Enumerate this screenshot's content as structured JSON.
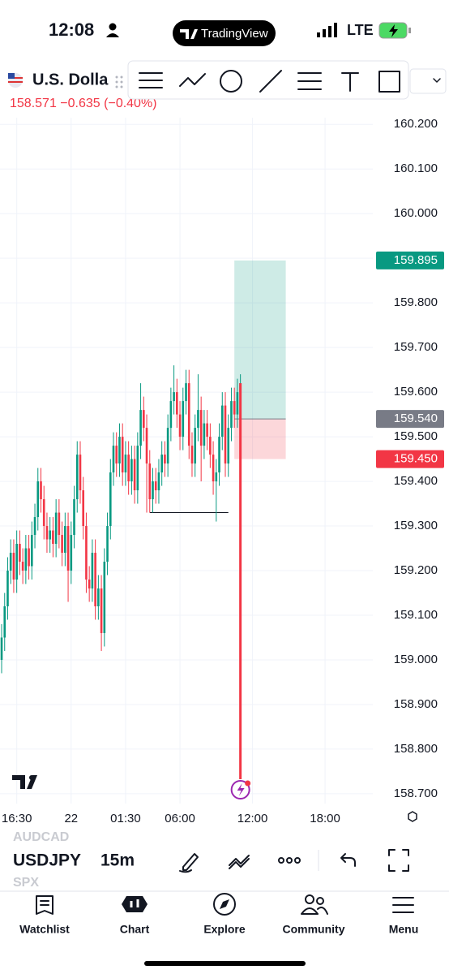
{
  "status_bar": {
    "time": "12:08",
    "app": "TradingView",
    "network": "LTE"
  },
  "symbol": {
    "name": "U.S. Dolla",
    "price": "158.571",
    "change": "−0.635",
    "change_pct": "(−0.40%)"
  },
  "chart_data": {
    "type": "candlestick",
    "up_color": "#089981",
    "down_color": "#f23645",
    "candles": [
      [
        159.0,
        159.08,
        158.97,
        159.05
      ],
      [
        159.05,
        159.15,
        159.02,
        159.12
      ],
      [
        159.12,
        159.23,
        159.09,
        159.2
      ],
      [
        159.2,
        159.27,
        159.17,
        159.24
      ],
      [
        159.24,
        159.27,
        159.15,
        159.18
      ],
      [
        159.18,
        159.29,
        159.15,
        159.26
      ],
      [
        159.26,
        159.29,
        159.19,
        159.22
      ],
      [
        159.22,
        159.25,
        159.17,
        159.2
      ],
      [
        159.2,
        159.28,
        159.17,
        159.25
      ],
      [
        159.25,
        159.28,
        159.18,
        159.21
      ],
      [
        159.21,
        159.31,
        159.18,
        159.28
      ],
      [
        159.28,
        159.35,
        159.25,
        159.32
      ],
      [
        159.32,
        159.43,
        159.29,
        159.4
      ],
      [
        159.4,
        159.43,
        159.33,
        159.36
      ],
      [
        159.36,
        159.39,
        159.27,
        159.3
      ],
      [
        159.3,
        159.33,
        159.24,
        159.27
      ],
      [
        159.27,
        159.32,
        159.24,
        159.29
      ],
      [
        159.29,
        159.32,
        159.23,
        159.26
      ],
      [
        159.26,
        159.36,
        159.23,
        159.33
      ],
      [
        159.33,
        159.36,
        159.25,
        159.28
      ],
      [
        159.28,
        159.31,
        159.21,
        159.24
      ],
      [
        159.24,
        159.33,
        159.21,
        159.3
      ],
      [
        159.3,
        159.33,
        159.13,
        159.2
      ],
      [
        159.2,
        159.31,
        159.17,
        159.28
      ],
      [
        159.28,
        159.39,
        159.25,
        159.36
      ],
      [
        159.36,
        159.49,
        159.33,
        159.46
      ],
      [
        159.46,
        159.49,
        159.35,
        159.38
      ],
      [
        159.38,
        159.41,
        159.27,
        159.3
      ],
      [
        159.3,
        159.33,
        159.15,
        159.18
      ],
      [
        159.18,
        159.21,
        159.13,
        159.16
      ],
      [
        159.16,
        159.27,
        159.13,
        159.24
      ],
      [
        159.24,
        159.27,
        159.09,
        159.12
      ],
      [
        159.12,
        159.19,
        159.09,
        159.16
      ],
      [
        159.16,
        159.19,
        159.02,
        159.06
      ],
      [
        159.06,
        159.25,
        159.03,
        159.22
      ],
      [
        159.22,
        159.33,
        159.19,
        159.3
      ],
      [
        159.3,
        159.45,
        159.27,
        159.42
      ],
      [
        159.42,
        159.51,
        159.39,
        159.48
      ],
      [
        159.48,
        159.51,
        159.41,
        159.44
      ],
      [
        159.44,
        159.53,
        159.41,
        159.5
      ],
      [
        159.5,
        159.53,
        159.39,
        159.42
      ],
      [
        159.42,
        159.49,
        159.39,
        159.46
      ],
      [
        159.46,
        159.49,
        159.37,
        159.4
      ],
      [
        159.4,
        159.48,
        159.37,
        159.45
      ],
      [
        159.45,
        159.48,
        159.35,
        159.38
      ],
      [
        159.38,
        159.51,
        159.35,
        159.48
      ],
      [
        159.48,
        159.62,
        159.45,
        159.56
      ],
      [
        159.56,
        159.59,
        159.49,
        159.52
      ],
      [
        159.52,
        159.55,
        159.33,
        159.44
      ],
      [
        159.44,
        159.47,
        159.33,
        159.36
      ],
      [
        159.36,
        159.43,
        159.33,
        159.4
      ],
      [
        159.4,
        159.43,
        159.35,
        159.38
      ],
      [
        159.38,
        159.45,
        159.35,
        159.42
      ],
      [
        159.42,
        159.49,
        159.39,
        159.46
      ],
      [
        159.46,
        159.49,
        159.41,
        159.44
      ],
      [
        159.44,
        159.55,
        159.41,
        159.52
      ],
      [
        159.52,
        159.61,
        159.49,
        159.58
      ],
      [
        159.58,
        159.66,
        159.55,
        159.6
      ],
      [
        159.6,
        159.63,
        159.52,
        159.55
      ],
      [
        159.55,
        159.58,
        159.47,
        159.5
      ],
      [
        159.5,
        159.61,
        159.47,
        159.58
      ],
      [
        159.58,
        159.65,
        159.55,
        159.62
      ],
      [
        159.62,
        159.65,
        159.45,
        159.48
      ],
      [
        159.48,
        159.51,
        159.41,
        159.44
      ],
      [
        159.44,
        159.55,
        159.41,
        159.52
      ],
      [
        159.52,
        159.64,
        159.49,
        159.56
      ],
      [
        159.56,
        159.59,
        159.4,
        159.48
      ],
      [
        159.48,
        159.56,
        159.45,
        159.53
      ],
      [
        159.53,
        159.56,
        159.47,
        159.5
      ],
      [
        159.5,
        159.53,
        159.43,
        159.46
      ],
      [
        159.46,
        159.49,
        159.37,
        159.4
      ],
      [
        159.4,
        159.45,
        159.31,
        159.42
      ],
      [
        159.42,
        159.53,
        159.39,
        159.5
      ],
      [
        159.5,
        159.6,
        159.47,
        159.57
      ],
      [
        159.57,
        159.6,
        159.41,
        159.44
      ],
      [
        159.44,
        159.55,
        159.41,
        159.52
      ],
      [
        159.52,
        159.61,
        159.49,
        159.58
      ],
      [
        159.58,
        159.61,
        159.52,
        159.55
      ],
      [
        159.55,
        159.63,
        159.52,
        159.6
      ],
      [
        159.6,
        159.64,
        159.5,
        159.62
      ]
    ],
    "ylim": [
      158.678,
      160.215
    ],
    "yticks": [
      {
        "value": 160.2,
        "label": "160.200"
      },
      {
        "value": 160.1,
        "label": "160.100"
      },
      {
        "value": 160.0,
        "label": "160.000"
      },
      {
        "value": 159.9,
        "label": "159.900"
      },
      {
        "value": 159.8,
        "label": "159.800"
      },
      {
        "value": 159.7,
        "label": "159.700"
      },
      {
        "value": 159.6,
        "label": "159.600"
      },
      {
        "value": 159.5,
        "label": "159.500"
      },
      {
        "value": 159.4,
        "label": "159.400"
      },
      {
        "value": 159.3,
        "label": "159.300"
      },
      {
        "value": 159.2,
        "label": "159.200"
      },
      {
        "value": 159.1,
        "label": "159.100"
      },
      {
        "value": 159.0,
        "label": "159.000"
      },
      {
        "value": 158.9,
        "label": "158.900"
      },
      {
        "value": 158.8,
        "label": "158.800"
      },
      {
        "value": 158.7,
        "label": "158.700"
      }
    ],
    "xlim": [
      -0.54,
      122.8
    ],
    "xticks": [
      {
        "value": 5,
        "label": "16:30"
      },
      {
        "value": 23,
        "label": "22"
      },
      {
        "value": 41,
        "label": "01:30"
      },
      {
        "value": 59,
        "label": "06:00"
      },
      {
        "value": 83,
        "label": "12:00"
      },
      {
        "value": 107,
        "label": "18:00"
      }
    ],
    "grid": true,
    "position": {
      "x": [
        77,
        94
      ],
      "target": {
        "value": 159.895,
        "label": "159.895"
      },
      "entry": {
        "value": 159.54,
        "label": "159.540"
      },
      "stop": {
        "value": 159.45,
        "label": "159.450"
      }
    },
    "level": {
      "value": 159.33,
      "x": [
        49,
        75
      ]
    }
  },
  "bottom_bar": {
    "symbols": [
      "AUDCAD",
      "USDJPY",
      "SPX"
    ],
    "interval": "15m"
  },
  "tabs": [
    "Watchlist",
    "Chart",
    "Explore",
    "Community",
    "Menu"
  ]
}
